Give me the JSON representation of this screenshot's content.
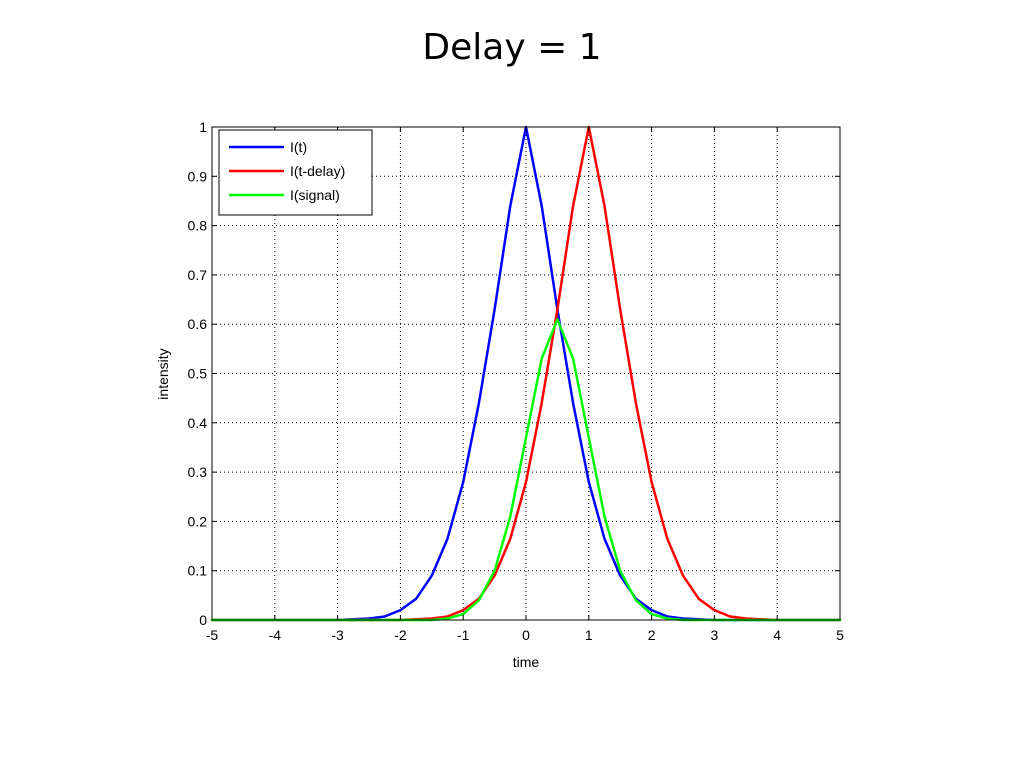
{
  "slide": {
    "title": "Delay = 1"
  },
  "chart_data": {
    "type": "line",
    "title": "",
    "xlabel": "time",
    "ylabel": "intensity",
    "xlim": [
      -5,
      5
    ],
    "ylim": [
      0,
      1
    ],
    "xticks": [
      "-5",
      "-4",
      "-3",
      "-2",
      "-1",
      "0",
      "1",
      "2",
      "3",
      "4",
      "5"
    ],
    "yticks": [
      "0",
      "0.1",
      "0.2",
      "0.3",
      "0.4",
      "0.5",
      "0.6",
      "0.7",
      "0.8",
      "0.9",
      "1"
    ],
    "grid": true,
    "legend_position": "top-left",
    "series": [
      {
        "name": "I(t)",
        "color": "#0000ff",
        "x": [
          -5,
          -3,
          -2.5,
          -2.25,
          -2,
          -1.75,
          -1.5,
          -1.25,
          -1,
          -0.75,
          -0.5,
          -0.25,
          0,
          0.25,
          0.5,
          0.75,
          1,
          1.25,
          1.5,
          1.75,
          2,
          2.25,
          2.5,
          3,
          5
        ],
        "y": [
          0,
          0,
          0.003,
          0.007,
          0.02,
          0.043,
          0.09,
          0.165,
          0.28,
          0.44,
          0.63,
          0.84,
          1.0,
          0.84,
          0.63,
          0.44,
          0.28,
          0.165,
          0.09,
          0.043,
          0.02,
          0.007,
          0.003,
          0,
          0
        ]
      },
      {
        "name": "I(t-delay)",
        "color": "#ff0000",
        "x": [
          -5,
          -2,
          -1.5,
          -1.25,
          -1,
          -0.75,
          -0.5,
          -0.25,
          0,
          0.25,
          0.5,
          0.75,
          1,
          1.25,
          1.5,
          1.75,
          2,
          2.25,
          2.5,
          2.75,
          3,
          3.25,
          3.5,
          4,
          5
        ],
        "y": [
          0,
          0,
          0.003,
          0.007,
          0.02,
          0.043,
          0.09,
          0.165,
          0.28,
          0.44,
          0.63,
          0.84,
          1.0,
          0.84,
          0.63,
          0.44,
          0.28,
          0.165,
          0.09,
          0.043,
          0.02,
          0.007,
          0.003,
          0,
          0
        ]
      },
      {
        "name": "I(signal)",
        "color": "#00ff00",
        "x": [
          -5,
          -1.5,
          -1.25,
          -1,
          -0.75,
          -0.5,
          -0.25,
          0,
          0.25,
          0.5,
          0.75,
          1,
          1.25,
          1.5,
          1.75,
          2,
          2.25,
          2.5,
          5
        ],
        "y": [
          0,
          0,
          0.003,
          0.012,
          0.04,
          0.1,
          0.21,
          0.37,
          0.53,
          0.61,
          0.53,
          0.37,
          0.21,
          0.1,
          0.04,
          0.012,
          0.003,
          0,
          0
        ]
      }
    ]
  }
}
